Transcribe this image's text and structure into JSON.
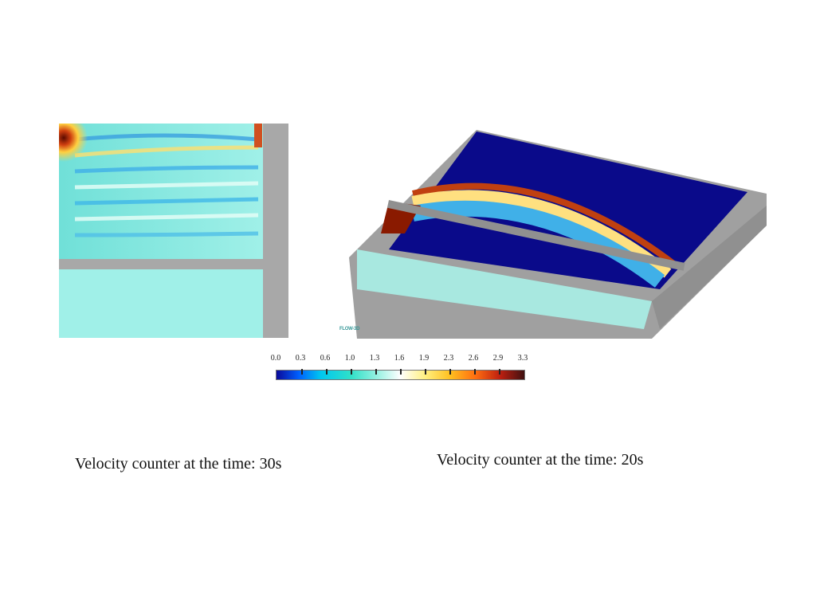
{
  "logo": "FLOW-3D",
  "colorbar": {
    "ticks": [
      "0.0",
      "0.3",
      "0.6",
      "1.0",
      "1.3",
      "1.6",
      "1.9",
      "2.3",
      "2.6",
      "2.9",
      "3.3"
    ],
    "min": 0.0,
    "max": 3.3,
    "colors": [
      "#0a0a9a",
      "#0060ff",
      "#00c8f0",
      "#30e0c8",
      "#ffffff",
      "#fff080",
      "#ffc020",
      "#ff7010",
      "#c02010",
      "#401010"
    ]
  },
  "captions": {
    "left": "Velocity counter at the time: 30s",
    "right": "Velocity counter at the time: 20s"
  }
}
